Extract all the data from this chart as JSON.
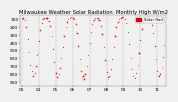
{
  "title": "Milwaukee Weather Solar Radiation",
  "subtitle": "Monthly High W/m2",
  "background_color": "#f0f0f0",
  "plot_bg_color": "#f0f0f0",
  "dot_color": "#dd0000",
  "dot_color2": "#ff6666",
  "grid_color": "#999999",
  "text_color": "#000000",
  "years": [
    "03",
    "04",
    "05",
    "06",
    "07",
    "08",
    "09",
    "10",
    "11"
  ],
  "data": [
    95,
    90,
    110,
    200,
    350,
    520,
    680,
    760,
    820,
    780,
    700,
    550,
    380,
    240,
    150,
    100,
    88,
    82,
    88,
    120,
    190,
    310,
    480,
    650,
    790,
    840,
    800,
    720,
    600,
    450,
    310,
    200,
    130,
    95,
    82,
    78,
    82,
    100,
    160,
    280,
    440,
    610,
    760,
    830,
    860,
    800,
    700,
    560,
    400,
    260,
    165,
    110,
    88,
    80,
    88,
    115,
    185,
    290,
    450,
    620,
    770,
    840,
    820,
    740,
    610,
    460,
    310,
    200,
    130,
    95,
    80,
    75,
    78,
    95,
    150,
    260,
    420,
    590,
    740,
    820,
    850,
    790,
    680,
    530,
    360,
    220,
    140,
    95,
    80,
    75,
    80,
    108,
    175,
    280,
    440,
    610,
    760,
    830,
    800,
    710,
    580,
    430
  ],
  "ylim_min": 50,
  "ylim_max": 950,
  "ytick_values": [
    100,
    200,
    300,
    400,
    500,
    600,
    700,
    800,
    900
  ],
  "ylabel_fontsize": 3.2,
  "xlabel_fontsize": 3.0,
  "title_fontsize": 3.8,
  "legend_label": "Solar Rad",
  "tick_interval": 12,
  "invert_yaxis": true
}
